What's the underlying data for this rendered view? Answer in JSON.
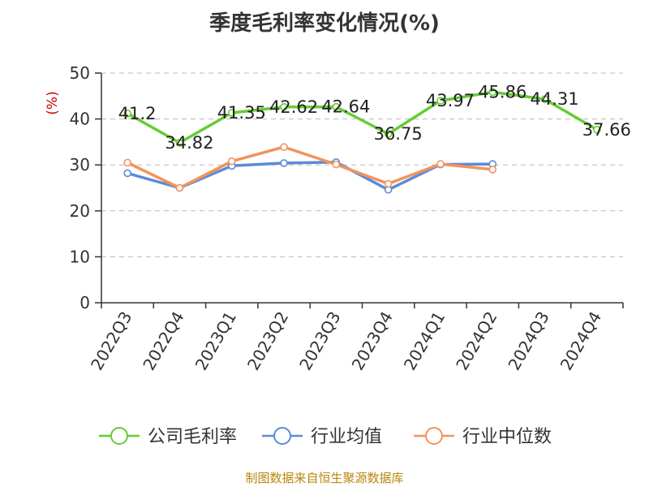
{
  "title": "季度毛利率变化情况(%)",
  "source": "制图数据来自恒生聚源数据库",
  "chart_data": {
    "type": "line",
    "title": "季度毛利率变化情况(%)",
    "ylabel": "(%)",
    "ylim": [
      0,
      50
    ],
    "yticks": [
      0,
      10,
      20,
      30,
      40,
      50
    ],
    "grid": true,
    "legend_position": "bottom",
    "categories": [
      "2022Q3",
      "2022Q4",
      "2023Q1",
      "2023Q2",
      "2023Q3",
      "2023Q4",
      "2024Q1",
      "2024Q2",
      "2024Q3",
      "2024Q4"
    ],
    "series": [
      {
        "name": "公司毛利率",
        "color": "#66cc33",
        "values": [
          41.2,
          34.82,
          41.35,
          42.62,
          42.64,
          36.75,
          43.97,
          45.86,
          44.31,
          37.66
        ],
        "labels": [
          "41.2",
          "34.82",
          "41.35",
          "42.62",
          "42.64",
          "36.75",
          "43.97",
          "45.86",
          "44.31",
          "37.66"
        ]
      },
      {
        "name": "行业均值",
        "color": "#5b8bd9",
        "values": [
          28.2,
          25.0,
          29.8,
          30.4,
          30.6,
          24.6,
          30.1,
          30.2,
          null,
          null
        ]
      },
      {
        "name": "行业中位数",
        "color": "#f4925a",
        "values": [
          30.5,
          25.0,
          30.8,
          33.9,
          30.1,
          25.9,
          30.2,
          29.0,
          null,
          null
        ]
      }
    ]
  }
}
